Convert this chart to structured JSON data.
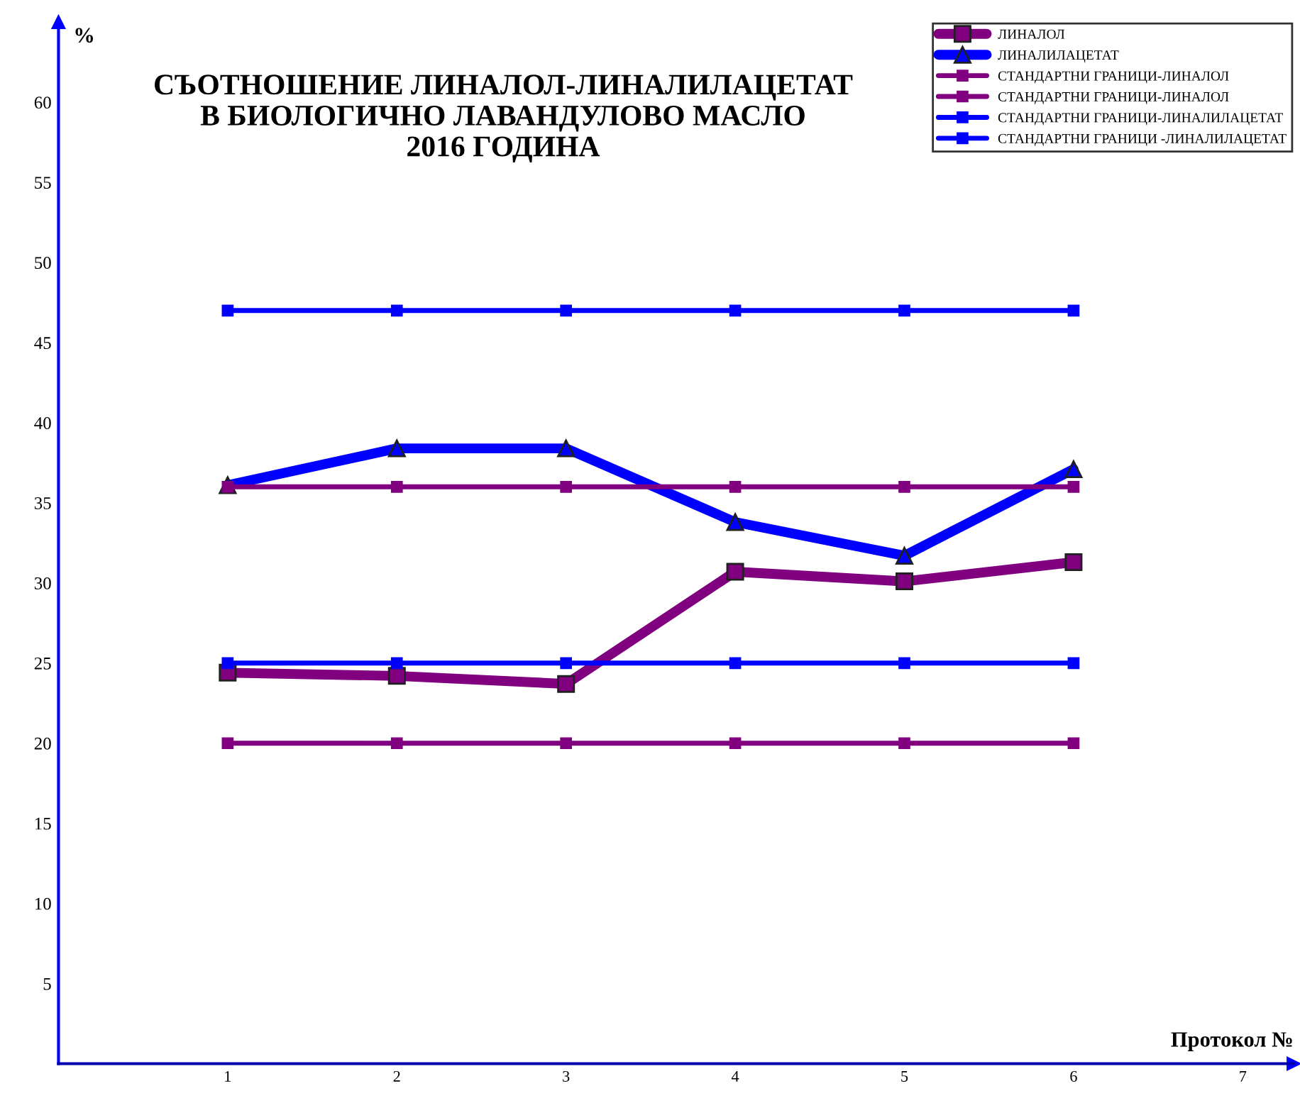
{
  "chart_data": {
    "type": "line",
    "title": "СЪОТНОШЕНИЕ ЛИНАЛОЛ-ЛИНАЛИЛАЦЕТАТ\nВ БИОЛОГИЧНО ЛАВАНДУЛОВО МАСЛО\n2016 ГОДИНА",
    "xlabel": "Протокол №",
    "ylabel": "%",
    "x": [
      1,
      2,
      3,
      4,
      5,
      6
    ],
    "xlim": [
      0,
      7.3
    ],
    "xticks": [
      1,
      2,
      3,
      4,
      5,
      6,
      7
    ],
    "ylim": [
      0,
      65
    ],
    "yticks": [
      5,
      10,
      15,
      20,
      25,
      30,
      35,
      40,
      45,
      50,
      55,
      60
    ],
    "grid": false,
    "legend": "top right",
    "line_style": "solid",
    "series": [
      {
        "name": "ЛИНАЛОЛ",
        "color": "#800080",
        "marker": "square",
        "values": [
          24.4,
          24.2,
          23.7,
          30.7,
          30.1,
          31.3
        ]
      },
      {
        "name": "ЛИНАЛИЛАЦЕТАТ",
        "color": "#0000ff",
        "marker": "triangle",
        "values": [
          36.1,
          38.4,
          38.4,
          33.8,
          31.7,
          37.1
        ]
      },
      {
        "name": "СТАНДАРТНИ ГРАНИЦИ-ЛИНАЛОЛ",
        "color": "#800080",
        "marker": "square",
        "values": [
          36,
          36,
          36,
          36,
          36,
          36
        ]
      },
      {
        "name": "СТАНДАРТНИ ГРАНИЦИ-ЛИНАЛОЛ",
        "color": "#800080",
        "marker": "square",
        "values": [
          20,
          20,
          20,
          20,
          20,
          20
        ]
      },
      {
        "name": "СТАНДАРТНИ ГРАНИЦИ-ЛИНАЛИЛАЦЕТАТ",
        "color": "#0000ff",
        "marker": "square",
        "values": [
          47,
          47,
          47,
          47,
          47,
          47
        ]
      },
      {
        "name": "СТАНДАРТНИ ГРАНИЦИ -ЛИНАЛИЛАЦЕТАТ",
        "color": "#0000ff",
        "marker": "square",
        "values": [
          25,
          25,
          25,
          25,
          25,
          25
        ]
      }
    ]
  }
}
